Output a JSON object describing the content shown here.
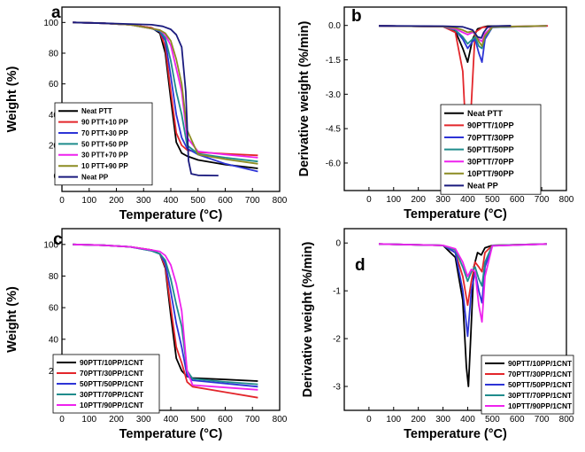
{
  "chart_data": [
    {
      "panel": "a",
      "type": "line",
      "xlabel": "Temperature (°C)",
      "ylabel": "Weight (%)",
      "xlim": [
        0,
        800
      ],
      "ylim": [
        -10,
        110
      ],
      "xticks": [
        0,
        100,
        200,
        300,
        400,
        500,
        600,
        700,
        800
      ],
      "yticks": [
        0,
        20,
        40,
        60,
        80,
        100
      ],
      "legend_position": "bottom-left",
      "series": [
        {
          "name": "Neat PTT",
          "color": "#000000",
          "x": [
            40,
            150,
            250,
            330,
            360,
            380,
            400,
            420,
            440,
            460,
            500,
            600,
            720
          ],
          "y": [
            100,
            99.5,
            98.5,
            96.5,
            93,
            80,
            50,
            22,
            15,
            13,
            10.5,
            7.5,
            5
          ]
        },
        {
          "name": "90 PTT+10 PP",
          "color": "#e3262b",
          "x": [
            40,
            150,
            250,
            330,
            360,
            380,
            400,
            420,
            440,
            460,
            500,
            600,
            720
          ],
          "y": [
            100,
            99.5,
            98.5,
            96.5,
            94,
            84,
            55,
            28,
            20,
            17,
            15.5,
            14.5,
            13.5
          ]
        },
        {
          "name": "70 PTT+30 PP",
          "color": "#2d34d6",
          "x": [
            40,
            150,
            250,
            330,
            360,
            380,
            400,
            420,
            440,
            460,
            500,
            600,
            720
          ],
          "y": [
            100,
            99.5,
            98.5,
            96,
            94,
            88,
            65,
            40,
            25,
            18,
            14,
            8,
            3
          ]
        },
        {
          "name": "50 PTT+50 PP",
          "color": "#1f8c8c",
          "x": [
            40,
            150,
            250,
            330,
            360,
            380,
            400,
            420,
            440,
            460,
            500,
            600,
            720
          ],
          "y": [
            100,
            99.5,
            98.5,
            96,
            94.5,
            90,
            75,
            55,
            40,
            20,
            14.5,
            12,
            9.5
          ]
        },
        {
          "name": "30 PTT+70 PP",
          "color": "#ee22ee",
          "x": [
            40,
            150,
            250,
            330,
            360,
            380,
            400,
            420,
            440,
            460,
            500,
            600,
            720
          ],
          "y": [
            100,
            99.5,
            98.5,
            96,
            95,
            92,
            85,
            70,
            55,
            25,
            16,
            14,
            12
          ]
        },
        {
          "name": "10 PTT+90 PP",
          "color": "#8c8c22",
          "x": [
            40,
            150,
            250,
            330,
            360,
            380,
            400,
            420,
            440,
            460,
            500,
            600,
            720
          ],
          "y": [
            100,
            99.5,
            98.5,
            96,
            95,
            93,
            88,
            76,
            60,
            30,
            14,
            11,
            8
          ]
        },
        {
          "name": "Neat PP",
          "color": "#1a1a7e",
          "x": [
            40,
            150,
            250,
            330,
            370,
            400,
            420,
            440,
            455,
            465,
            475,
            500,
            575
          ],
          "y": [
            100,
            99.5,
            99,
            98.5,
            97.5,
            95.5,
            92,
            84,
            55,
            10,
            1.5,
            0.5,
            0.3
          ]
        }
      ]
    },
    {
      "panel": "b",
      "type": "line",
      "xlabel": "Temperature (°C)",
      "ylabel": "Derivative weight (%/min)",
      "xlim": [
        -100,
        800
      ],
      "ylim": [
        -7.2,
        0.8
      ],
      "xticks": [
        0,
        100,
        200,
        300,
        400,
        500,
        600,
        700,
        800
      ],
      "yticks": [
        0.0,
        -1.5,
        -3.0,
        -4.5,
        -6.0
      ],
      "ytick_labels": [
        "0.0",
        "-1.5",
        "-3.0",
        "-4.5",
        "-6.0"
      ],
      "legend_position": "bottom-right",
      "series": [
        {
          "name": "Neat PTT",
          "color": "#000000",
          "x": [
            40,
            300,
            350,
            380,
            400,
            420,
            440,
            460,
            480,
            575
          ],
          "y": [
            -0.02,
            -0.05,
            -0.25,
            -1.0,
            -1.6,
            -0.6,
            -0.15,
            -0.08,
            -0.03,
            -0.02
          ]
        },
        {
          "name": "90PTT/10PP",
          "color": "#e3262b",
          "x": [
            40,
            300,
            350,
            380,
            395,
            403,
            412,
            430,
            460,
            700,
            725
          ],
          "y": [
            -0.02,
            -0.05,
            -0.3,
            -2.0,
            -5.2,
            -6.2,
            -4.0,
            -0.3,
            -0.08,
            -0.03,
            -0.02
          ]
        },
        {
          "name": "70PTT/30PP",
          "color": "#2d34d6",
          "x": [
            40,
            300,
            350,
            380,
            400,
            420,
            430,
            445,
            458,
            470,
            500,
            720
          ],
          "y": [
            -0.02,
            -0.05,
            -0.2,
            -0.6,
            -1.0,
            -0.7,
            -0.6,
            -1.2,
            -1.6,
            -0.6,
            -0.08,
            -0.02
          ]
        },
        {
          "name": "50PTT/50PP",
          "color": "#1f8c8c",
          "x": [
            40,
            300,
            350,
            380,
            400,
            420,
            430,
            445,
            458,
            470,
            500,
            720
          ],
          "y": [
            -0.02,
            -0.05,
            -0.2,
            -0.5,
            -0.8,
            -0.6,
            -0.5,
            -0.9,
            -1.0,
            -0.5,
            -0.08,
            -0.02
          ]
        },
        {
          "name": "30PTT/70PP",
          "color": "#ee22ee",
          "x": [
            40,
            300,
            350,
            380,
            400,
            420,
            430,
            445,
            458,
            470,
            500,
            720
          ],
          "y": [
            -0.02,
            -0.05,
            -0.15,
            -0.3,
            -0.4,
            -0.3,
            -0.35,
            -0.6,
            -0.7,
            -0.35,
            -0.06,
            -0.02
          ]
        },
        {
          "name": "10PTT/90PP",
          "color": "#8c8c22",
          "x": [
            40,
            300,
            350,
            380,
            400,
            420,
            430,
            445,
            458,
            470,
            500,
            720
          ],
          "y": [
            -0.02,
            -0.05,
            -0.1,
            -0.2,
            -0.3,
            -0.25,
            -0.35,
            -0.7,
            -0.9,
            -0.45,
            -0.06,
            -0.02
          ]
        },
        {
          "name": "Neat PP",
          "color": "#1a1a7e",
          "x": [
            40,
            300,
            380,
            420,
            440,
            455,
            465,
            480,
            500,
            575
          ],
          "y": [
            -0.02,
            -0.03,
            -0.06,
            -0.2,
            -0.5,
            -0.55,
            -0.3,
            -0.08,
            -0.03,
            -0.02
          ]
        }
      ]
    },
    {
      "panel": "c",
      "type": "line",
      "xlabel": "Temperature (°C)",
      "ylabel": "Weight (%)",
      "xlim": [
        0,
        800
      ],
      "ylim": [
        -5,
        110
      ],
      "xticks": [
        0,
        100,
        200,
        300,
        400,
        500,
        600,
        700,
        800
      ],
      "yticks": [
        0,
        20,
        40,
        60,
        80,
        100
      ],
      "legend_position": "bottom-left",
      "series": [
        {
          "name": "90PTT/10PP/1CNT",
          "color": "#000000",
          "x": [
            40,
            150,
            250,
            330,
            360,
            380,
            400,
            420,
            440,
            460,
            480,
            600,
            720
          ],
          "y": [
            100,
            99.5,
            98.5,
            96.5,
            94,
            85,
            55,
            28,
            20,
            16.5,
            15.5,
            14.5,
            13.5
          ]
        },
        {
          "name": "70PTT/30PP/1CNT",
          "color": "#e3262b",
          "x": [
            40,
            150,
            250,
            330,
            360,
            380,
            400,
            420,
            440,
            460,
            480,
            600,
            720
          ],
          "y": [
            100,
            99.5,
            98.5,
            96.5,
            94,
            86,
            60,
            35,
            25,
            13,
            10,
            6.5,
            3
          ]
        },
        {
          "name": "50PTT/50PP/1CNT",
          "color": "#2d34d6",
          "x": [
            40,
            150,
            250,
            330,
            360,
            380,
            400,
            420,
            440,
            460,
            480,
            600,
            720
          ],
          "y": [
            100,
            99.5,
            98.5,
            96,
            94,
            88,
            70,
            50,
            35,
            17,
            14,
            12,
            10
          ]
        },
        {
          "name": "30PTT/70PP/1CNT",
          "color": "#1f8c8c",
          "x": [
            40,
            150,
            250,
            330,
            360,
            380,
            400,
            420,
            440,
            460,
            480,
            600,
            720
          ],
          "y": [
            100,
            99.5,
            98.5,
            96,
            94,
            90,
            78,
            62,
            48,
            20,
            15,
            13,
            11.5
          ]
        },
        {
          "name": "10PTT/90PP/1CNT",
          "color": "#ee22ee",
          "x": [
            40,
            150,
            250,
            330,
            360,
            380,
            400,
            420,
            440,
            460,
            480,
            600,
            720
          ],
          "y": [
            100,
            99.5,
            98.5,
            96.5,
            95.5,
            93,
            87,
            75,
            58,
            20,
            11,
            9.5,
            8
          ]
        }
      ]
    },
    {
      "panel": "d",
      "type": "line",
      "xlabel": "Temperature (°C)",
      "ylabel": "Derivative weight (%/min)",
      "xlim": [
        -100,
        800
      ],
      "ylim": [
        -3.5,
        0.3
      ],
      "xticks": [
        0,
        100,
        200,
        300,
        400,
        500,
        600,
        700,
        800
      ],
      "yticks": [
        0,
        -1,
        -2,
        -3
      ],
      "legend_position": "bottom-right",
      "series": [
        {
          "name": "90PTT/10PP/1CNT",
          "color": "#000000",
          "x": [
            40,
            300,
            350,
            380,
            395,
            403,
            412,
            425,
            440,
            455,
            470,
            500,
            720
          ],
          "y": [
            -0.02,
            -0.05,
            -0.3,
            -1.2,
            -2.6,
            -3.0,
            -2.0,
            -0.5,
            -0.2,
            -0.25,
            -0.1,
            -0.05,
            -0.02
          ]
        },
        {
          "name": "70PTT/30PP/1CNT",
          "color": "#e3262b",
          "x": [
            40,
            300,
            350,
            380,
            400,
            415,
            430,
            445,
            458,
            470,
            500,
            720
          ],
          "y": [
            -0.02,
            -0.05,
            -0.2,
            -0.7,
            -1.3,
            -0.8,
            -0.4,
            -0.5,
            -0.6,
            -0.2,
            -0.05,
            -0.02
          ]
        },
        {
          "name": "50PTT/50PP/1CNT",
          "color": "#2d34d6",
          "x": [
            40,
            300,
            350,
            380,
            400,
            415,
            430,
            445,
            458,
            470,
            500,
            720
          ],
          "y": [
            -0.02,
            -0.05,
            -0.2,
            -1.0,
            -1.95,
            -1.0,
            -0.6,
            -1.0,
            -1.25,
            -0.5,
            -0.06,
            -0.02
          ]
        },
        {
          "name": "30PTT/70PP/1CNT",
          "color": "#1f8c8c",
          "x": [
            40,
            300,
            350,
            380,
            400,
            415,
            430,
            445,
            458,
            470,
            500,
            720
          ],
          "y": [
            -0.02,
            -0.05,
            -0.15,
            -0.5,
            -0.8,
            -0.6,
            -0.5,
            -0.75,
            -0.9,
            -0.4,
            -0.05,
            -0.02
          ]
        },
        {
          "name": "10PTT/90PP/1CNT",
          "color": "#ee22ee",
          "x": [
            40,
            300,
            350,
            380,
            400,
            415,
            430,
            445,
            458,
            470,
            500,
            720
          ],
          "y": [
            -0.02,
            -0.05,
            -0.12,
            -0.4,
            -0.7,
            -0.55,
            -0.6,
            -1.3,
            -1.65,
            -0.7,
            -0.06,
            -0.02
          ]
        }
      ]
    }
  ]
}
